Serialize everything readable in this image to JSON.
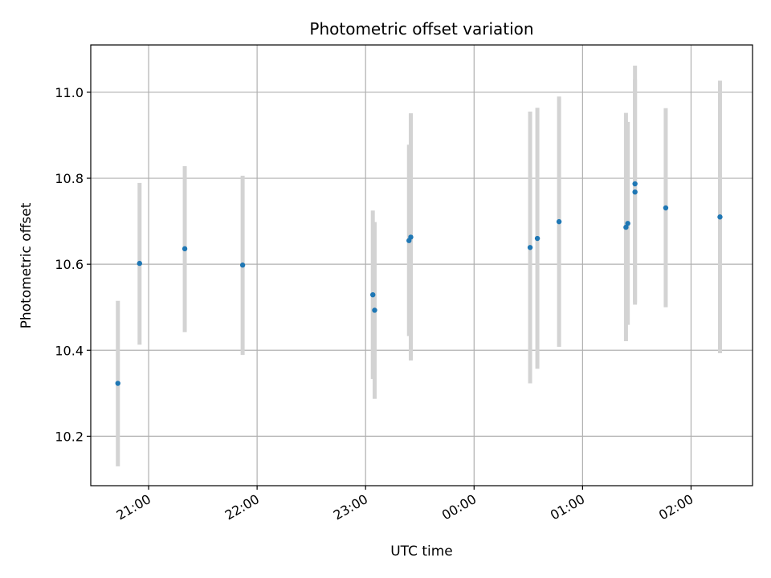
{
  "chart_data": {
    "type": "scatter",
    "title": "Photometric offset variation",
    "xlabel": "UTC time",
    "ylabel": "Photometric offset",
    "x_ticks": [
      "21:00",
      "22:00",
      "23:00",
      "00:00",
      "01:00",
      "02:00"
    ],
    "y_ticks": [
      "10.2",
      "10.4",
      "10.6",
      "10.8",
      "11.0"
    ],
    "xlim": [
      "20:28",
      "02:34"
    ],
    "ylim": [
      10.085,
      11.11
    ],
    "grid": true,
    "colors": {
      "marker": "#1f77b4",
      "errorbar": "#d3d3d3",
      "grid": "#b0b0b0"
    },
    "points": [
      {
        "time": "20:43",
        "value": 10.323,
        "low": 10.13,
        "high": 10.515
      },
      {
        "time": "20:55",
        "value": 10.602,
        "low": 10.413,
        "high": 10.789
      },
      {
        "time": "21:20",
        "value": 10.636,
        "low": 10.442,
        "high": 10.828
      },
      {
        "time": "21:52",
        "value": 10.598,
        "low": 10.389,
        "high": 10.806
      },
      {
        "time": "23:04",
        "value": 10.529,
        "low": 10.333,
        "high": 10.725
      },
      {
        "time": "23:05",
        "value": 10.493,
        "low": 10.287,
        "high": 10.698
      },
      {
        "time": "23:24",
        "value": 10.655,
        "low": 10.433,
        "high": 10.878
      },
      {
        "time": "23:25",
        "value": 10.663,
        "low": 10.376,
        "high": 10.951
      },
      {
        "time": "00:31",
        "value": 10.639,
        "low": 10.323,
        "high": 10.955
      },
      {
        "time": "00:35",
        "value": 10.66,
        "low": 10.357,
        "high": 10.964
      },
      {
        "time": "00:47",
        "value": 10.699,
        "low": 10.408,
        "high": 10.99
      },
      {
        "time": "01:24",
        "value": 10.686,
        "low": 10.421,
        "high": 10.952
      },
      {
        "time": "01:25",
        "value": 10.695,
        "low": 10.459,
        "high": 10.931
      },
      {
        "time": "01:29",
        "value": 10.787,
        "low": 10.511,
        "high": 11.062
      },
      {
        "time": "01:29",
        "value": 10.768,
        "low": 10.506,
        "high": 11.03
      },
      {
        "time": "01:46",
        "value": 10.731,
        "low": 10.5,
        "high": 10.963
      },
      {
        "time": "02:16",
        "value": 10.71,
        "low": 10.393,
        "high": 11.027
      }
    ]
  }
}
